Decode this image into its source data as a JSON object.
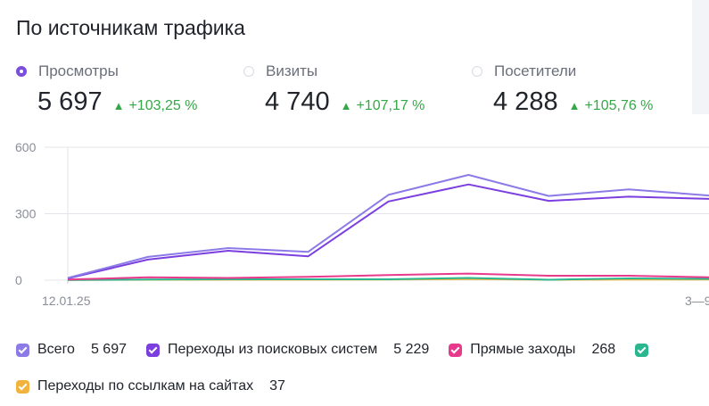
{
  "title": "По источникам трафика",
  "metrics": [
    {
      "label": "Просмотры",
      "value": "5 697",
      "delta": "+103,25 %",
      "selected": true
    },
    {
      "label": "Визиты",
      "value": "4 740",
      "delta": "+107,17 %",
      "selected": false
    },
    {
      "label": "Посетители",
      "value": "4 288",
      "delta": "+105,76 %",
      "selected": false
    }
  ],
  "colors": {
    "accent": "#7c4ddc",
    "positive": "#34a847"
  },
  "chart_data": {
    "type": "line",
    "x_tick_labels": [
      "12.01.25",
      "3—9"
    ],
    "y_ticks": [
      0,
      300,
      600
    ],
    "ylim": [
      0,
      600
    ],
    "grid": true,
    "x_points": 9,
    "series": [
      {
        "name": "Всего",
        "color": "#8c7be6",
        "values": [
          10,
          105,
          145,
          128,
          385,
          475,
          380,
          410,
          382
        ]
      },
      {
        "name": "Переходы из поисковых систем",
        "color": "#7b3fe0",
        "values": [
          8,
          93,
          133,
          108,
          355,
          432,
          358,
          377,
          367
        ]
      },
      {
        "name": "Прямые заходы",
        "color": "#e83a8c",
        "values": [
          3,
          13,
          10,
          15,
          23,
          30,
          20,
          20,
          13
        ]
      },
      {
        "name": "",
        "color": "#2ab68f",
        "values": [
          1,
          3,
          4,
          4,
          4,
          10,
          2,
          8,
          6
        ]
      },
      {
        "name": "Переходы по ссылкам на сайтах",
        "color": "#f2b33d",
        "values": [
          1,
          2,
          2,
          2,
          3,
          5,
          2,
          3,
          3
        ]
      }
    ]
  },
  "legend": [
    {
      "name": "Всего",
      "value": "5 697",
      "color": "#8c7be6"
    },
    {
      "name": "Переходы из поисковых систем",
      "value": "5 229",
      "color": "#7b3fe0"
    },
    {
      "name": "Прямые заходы",
      "value": "268",
      "color": "#e83a8c"
    },
    {
      "name": "",
      "value": "",
      "color": "#2ab68f"
    },
    {
      "name": "Переходы по ссылкам на сайтах",
      "value": "37",
      "color": "#f2b33d"
    }
  ]
}
